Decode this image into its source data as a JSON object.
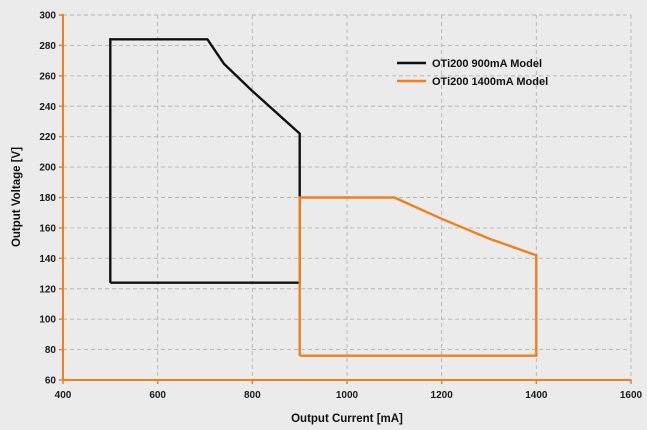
{
  "chart_data": {
    "type": "line",
    "title": "",
    "xlabel": "Output Current [mA]",
    "ylabel": "Output Voltage [V]",
    "xlim": [
      400,
      1600
    ],
    "ylim": [
      60,
      300
    ],
    "x_ticks": [
      400,
      600,
      800,
      1000,
      1200,
      1400,
      1600
    ],
    "y_ticks": [
      60,
      80,
      100,
      120,
      140,
      160,
      180,
      200,
      220,
      240,
      260,
      280,
      300
    ],
    "grid": true,
    "legend_position": "top-right",
    "axis_color": "#f07f1e",
    "series": [
      {
        "name": "OTi200 900mA Model",
        "color": "#111111",
        "x": [
          500,
          500,
          705,
          740,
          800,
          900,
          900,
          500
        ],
        "y": [
          124,
          284,
          284,
          268,
          250,
          222,
          124,
          124
        ]
      },
      {
        "name": "OTi200 1400mA Model",
        "color": "#f07f1e",
        "x": [
          900,
          900,
          1100,
          1200,
          1300,
          1400,
          1400,
          900
        ],
        "y": [
          76,
          180,
          180,
          166,
          153,
          142,
          76,
          76
        ]
      }
    ]
  }
}
